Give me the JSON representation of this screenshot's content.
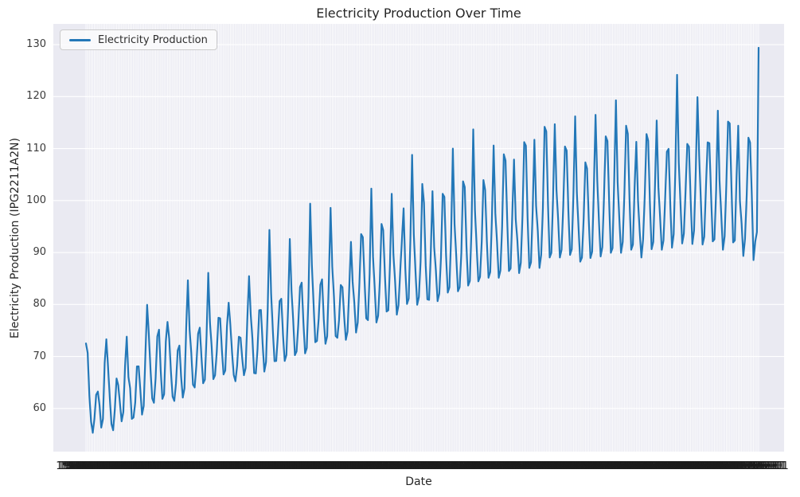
{
  "figure": {
    "title": "Electricity Production Over Time",
    "xlabel": "Date",
    "ylabel": "Electricity Production (IPG2211A2N)"
  },
  "legend": {
    "label": "Electricity Production",
    "position": "upper-left"
  },
  "colors": {
    "line": "#2478b8",
    "plot_bg": "#eaeaf2",
    "grid": "#ffffff",
    "figure_bg": "#ffffff",
    "title_text": "#262626",
    "tick_text": "#3b3b3b",
    "x_tick_text": "#1c1c1c",
    "legend_border": "#cccccc"
  },
  "chart_data": {
    "type": "line",
    "series_name": "Electricity Production",
    "x_start": "1985-01-01",
    "x_end": "2018-01-01",
    "x_freq": "monthly",
    "n_points": 397,
    "x_tick_label_first": "1985-01-01",
    "x_tick_label_last": "2018-01-01",
    "x_tick_labels_note": "one tick per month; labels overlap into an illegible black band",
    "grid": true,
    "ylim": [
      51.7,
      134.0
    ],
    "y_ticks": [
      60,
      70,
      80,
      90,
      100,
      110,
      120,
      130
    ],
    "values": [
      72.51,
      70.67,
      62.45,
      57.47,
      55.32,
      58.09,
      62.62,
      63.25,
      60.58,
      56.32,
      58.0,
      68.71,
      73.31,
      67.99,
      62.22,
      57.03,
      55.81,
      59.9,
      65.77,
      64.48,
      61.0,
      57.53,
      59.34,
      68.14,
      73.82,
      66.06,
      63.89,
      57.99,
      58.27,
      61.14,
      68.09,
      68.11,
      63.61,
      58.82,
      60.51,
      70.4,
      79.94,
      74.3,
      67.45,
      61.95,
      61.1,
      65.85,
      73.85,
      75.15,
      67.3,
      61.85,
      62.75,
      72.85,
      76.65,
      73.45,
      67.25,
      62.3,
      61.45,
      64.85,
      71.15,
      72.1,
      66.2,
      62.1,
      63.9,
      75.45,
      84.65,
      75.2,
      70.7,
      64.6,
      64.05,
      68.35,
      74.35,
      75.55,
      69.85,
      64.85,
      65.55,
      74.05,
      86.1,
      76.55,
      71.9,
      65.65,
      66.4,
      70.95,
      77.45,
      77.35,
      71.35,
      66.55,
      67.3,
      75.75,
      80.35,
      76.1,
      70.8,
      66.45,
      65.25,
      68.25,
      73.8,
      73.6,
      69.6,
      66.4,
      67.8,
      77.15,
      85.45,
      78.1,
      73.4,
      66.8,
      66.75,
      71.45,
      78.9,
      78.95,
      72.5,
      67.1,
      68.95,
      79.35,
      94.35,
      82.2,
      75.15,
      69.1,
      69.15,
      74.3,
      80.65,
      81.1,
      74.15,
      69.15,
      70.3,
      79.35,
      92.6,
      82.65,
      77.0,
      70.25,
      71.0,
      76.25,
      83.35,
      84.2,
      76.65,
      70.6,
      71.65,
      81.45,
      99.4,
      87.65,
      80.2,
      72.75,
      73.0,
      77.3,
      83.8,
      84.85,
      77.15,
      72.45,
      73.9,
      84.75,
      98.6,
      87.3,
      81.5,
      73.95,
      73.6,
      77.05,
      83.75,
      83.3,
      77.75,
      73.2,
      74.8,
      83.15,
      92.05,
      84.35,
      80.25,
      74.6,
      76.55,
      84.25,
      93.55,
      92.95,
      84.65,
      77.35,
      77.0,
      85.85,
      102.3,
      89.2,
      83.1,
      76.55,
      77.85,
      84.5,
      95.5,
      94.3,
      85.55,
      78.65,
      78.9,
      88.0,
      101.3,
      89.65,
      84.4,
      78.05,
      79.9,
      86.35,
      92.35,
      98.5,
      86.95,
      80.1,
      81.15,
      92.45,
      108.8,
      93.55,
      86.4,
      79.95,
      81.45,
      88.35,
      103.2,
      99.55,
      87.55,
      81.0,
      80.9,
      89.95,
      101.8,
      91.05,
      86.55,
      80.65,
      82.1,
      89.05,
      101.3,
      100.7,
      89.45,
      82.3,
      83.35,
      93.65,
      110.0,
      95.45,
      89.25,
      82.55,
      83.35,
      89.95,
      103.7,
      102.6,
      91.35,
      83.65,
      84.55,
      94.95,
      113.7,
      98.25,
      91.25,
      84.45,
      85.35,
      92.15,
      103.95,
      102.05,
      92.25,
      85.15,
      86.25,
      96.65,
      110.6,
      97.55,
      92.05,
      85.15,
      86.55,
      95.05,
      108.9,
      107.7,
      96.25,
      86.45,
      86.95,
      97.45,
      107.9,
      96.45,
      92.25,
      86.05,
      88.05,
      97.15,
      111.25,
      110.55,
      96.65,
      87.05,
      88.15,
      98.15,
      111.7,
      99.05,
      94.15,
      87.05,
      89.55,
      98.55,
      114.2,
      113.3,
      99.35,
      89.05,
      89.95,
      100.65,
      114.7,
      102.05,
      96.25,
      89.05,
      90.55,
      99.05,
      110.4,
      109.6,
      98.05,
      89.55,
      90.65,
      101.55,
      116.2,
      101.55,
      94.75,
      88.25,
      89.05,
      96.55,
      107.35,
      106.15,
      96.35,
      88.95,
      90.15,
      102.25,
      116.5,
      104.05,
      96.05,
      89.25,
      91.05,
      100.95,
      112.35,
      111.45,
      99.85,
      89.95,
      90.85,
      103.95,
      119.3,
      103.55,
      96.55,
      89.95,
      92.05,
      101.55,
      114.4,
      112.85,
      100.35,
      90.55,
      91.55,
      102.65,
      111.3,
      100.05,
      94.05,
      89.05,
      92.55,
      101.25,
      112.8,
      111.5,
      99.55,
      90.65,
      92.05,
      102.95,
      115.4,
      102.55,
      96.85,
      90.55,
      92.35,
      100.55,
      109.4,
      109.95,
      99.25,
      90.95,
      93.55,
      106.15,
      124.2,
      107.35,
      99.55,
      91.75,
      93.65,
      101.95,
      110.9,
      110.35,
      100.15,
      91.65,
      94.25,
      105.65,
      119.9,
      108.65,
      99.95,
      91.55,
      93.05,
      102.55,
      111.2,
      111.05,
      101.25,
      92.15,
      92.55,
      101.95,
      117.3,
      103.85,
      97.35,
      90.55,
      93.15,
      103.05,
      115.2,
      114.85,
      102.95,
      91.95,
      92.35,
      104.45,
      114.4,
      99.95,
      95.55,
      89.35,
      92.65,
      101.05,
      112.1,
      111.15,
      100.95,
      88.55,
      92.05,
      93.95,
      129.4
    ]
  }
}
